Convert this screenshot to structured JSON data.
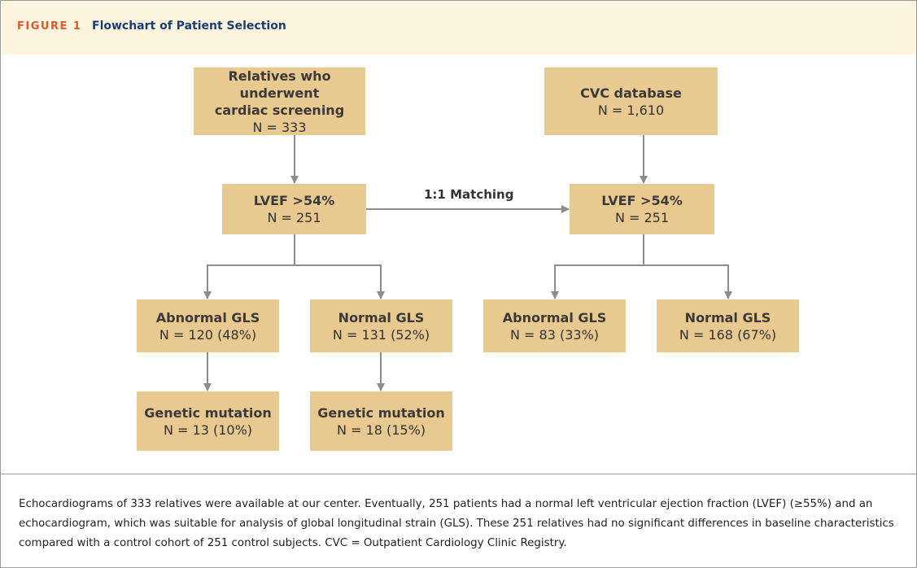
{
  "header": {
    "label": "FIGURE 1",
    "title": "Flowchart of Patient Selection"
  },
  "nodes": [
    {
      "lines": [
        "Relatives who underwent",
        "cardiac screening"
      ],
      "count": "N = 333"
    },
    {
      "lines": [
        "CVC database"
      ],
      "count": "N = 1,610"
    },
    {
      "lines": [
        "LVEF >54%"
      ],
      "count": "N = 251"
    },
    {
      "lines": [
        "LVEF >54%"
      ],
      "count": "N = 251"
    },
    {
      "lines": [
        "Abnormal GLS"
      ],
      "count": "N = 120 (48%)"
    },
    {
      "lines": [
        "Normal GLS"
      ],
      "count": "N = 131 (52%)"
    },
    {
      "lines": [
        "Abnormal GLS"
      ],
      "count": "N = 83 (33%)"
    },
    {
      "lines": [
        "Normal GLS"
      ],
      "count": "N = 168 (67%)"
    },
    {
      "lines": [
        "Genetic mutation"
      ],
      "count": "N = 13 (10%)"
    },
    {
      "lines": [
        "Genetic mutation"
      ],
      "count": "N = 18 (15%)"
    }
  ],
  "edge_label": "1:1 Matching",
  "caption": "Echocardiograms of 333 relatives were available at our center. Eventually, 251 patients had a normal left ventricular ejection fraction (LVEF) (≥55%) and an echocardiogram, which was suitable for analysis of global longitudinal strain (GLS). These 251 relatives had no significant differences in baseline characteristics compared with a control cohort of 251 control subjects. CVC = Outpatient Cardiology Clinic Registry."
}
